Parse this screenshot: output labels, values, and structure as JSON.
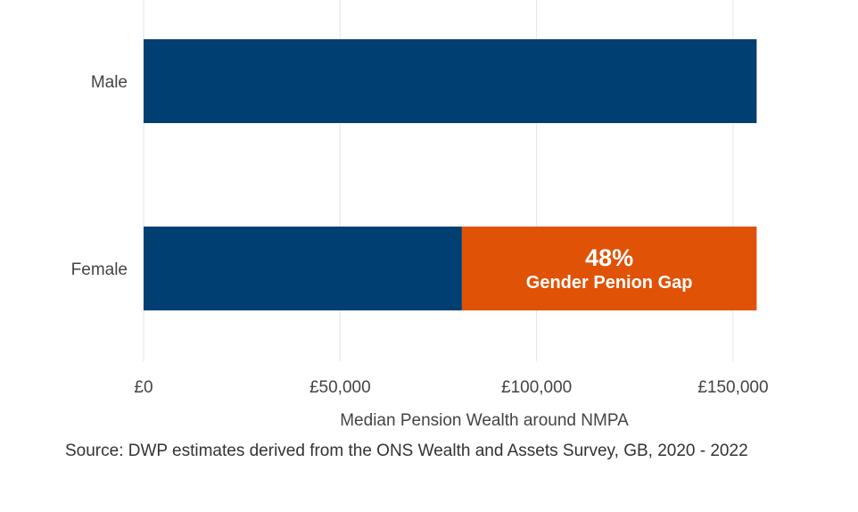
{
  "chart_data": {
    "type": "bar",
    "orientation": "horizontal",
    "categories": [
      "Male",
      "Female"
    ],
    "series": [
      {
        "values": [
          156000,
          81000
        ],
        "color": "#003F72"
      },
      {
        "values": [
          0,
          75000
        ],
        "color": "#E05206"
      }
    ],
    "xlabel": "Median Pension Wealth around NMPA",
    "xlim": [
      0,
      160000
    ],
    "x_ticks": [
      0,
      50000,
      100000,
      150000
    ],
    "x_tick_labels": [
      "£0",
      "£50,000",
      "£100,000",
      "£150,000"
    ],
    "grid": "vertical",
    "annotation": {
      "value": "48%",
      "text": "Gender Penion Gap"
    }
  },
  "source": "Source: DWP estimates derived from the ONS Wealth and Assets Survey, GB, 2020 - 2022"
}
